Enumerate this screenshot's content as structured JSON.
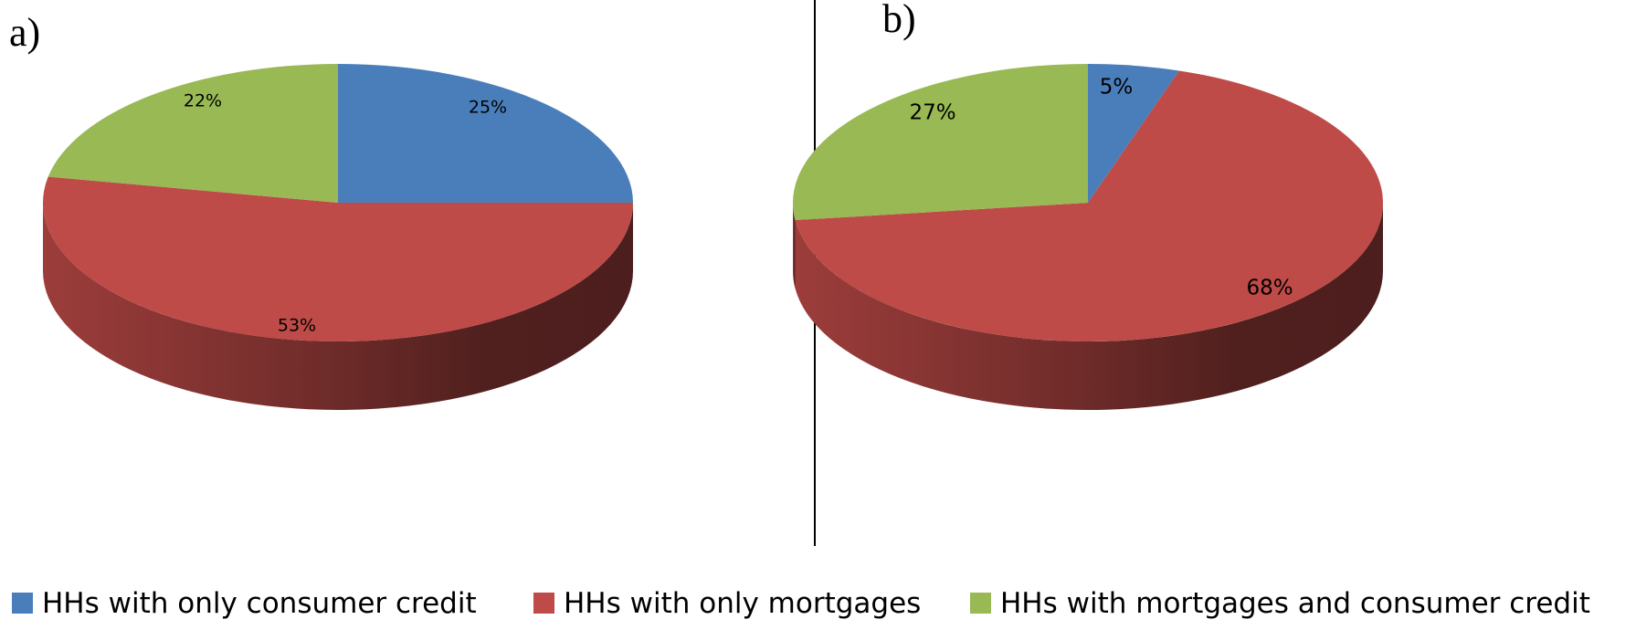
{
  "chart_data": [
    {
      "type": "pie",
      "panel_label": "a)",
      "categories": [
        "HHs with only consumer credit",
        "HHs with only mortgages",
        "HHs with mortgages and consumer credit"
      ],
      "values": [
        25,
        53,
        22
      ],
      "data_labels": [
        "25%",
        "53%",
        "22%"
      ],
      "colors": [
        "#4a7ebb",
        "#be4b48",
        "#98b954"
      ],
      "style": "3d-tilted"
    },
    {
      "type": "pie",
      "panel_label": "b)",
      "categories": [
        "HHs with only consumer credit",
        "HHs with only mortgages",
        "HHs with mortgages and consumer credit"
      ],
      "values": [
        5,
        68,
        27
      ],
      "data_labels": [
        "5%",
        "68%",
        "27%"
      ],
      "colors": [
        "#4a7ebb",
        "#be4b48",
        "#98b954"
      ],
      "style": "3d-tilted"
    }
  ],
  "legend": {
    "placement": "bottom",
    "items": [
      {
        "label": "HHs with only consumer credit",
        "color": "#4a7ebb"
      },
      {
        "label": "HHs with only mortgages",
        "color": "#be4b48"
      },
      {
        "label": "HHs with mortgages and consumer credit",
        "color": "#98b954"
      }
    ]
  }
}
